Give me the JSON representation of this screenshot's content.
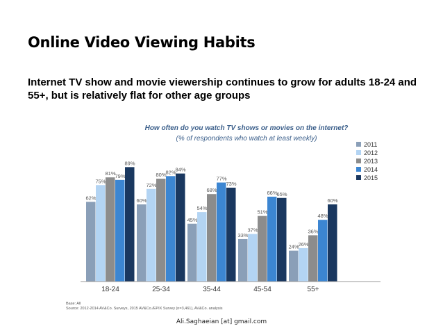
{
  "slide": {
    "title": "Online Video Viewing Habits",
    "subtitle": "Internet TV show and movie viewership continues to grow for adults 18-24 and 55+, but is relatively flat for other age groups",
    "footer": "Ali.Saghaeian [at] gmail.com"
  },
  "chart_data": {
    "type": "bar",
    "title": "How often do you watch TV shows or movies on the internet?",
    "subtitle": "(% of respondents who watch at least weekly)",
    "categories": [
      "18-24",
      "25-34",
      "35-44",
      "45-54",
      "55+"
    ],
    "series": [
      {
        "name": "2011",
        "color": "#8a9fb8",
        "values": [
          62,
          60,
          45,
          33,
          24
        ]
      },
      {
        "name": "2012",
        "color": "#b3d4f3",
        "values": [
          75,
          72,
          54,
          37,
          26
        ]
      },
      {
        "name": "2013",
        "color": "#8c8c8c",
        "values": [
          81,
          80,
          68,
          51,
          36
        ]
      },
      {
        "name": "2014",
        "color": "#3c86d2",
        "values": [
          79,
          82,
          77,
          66,
          48
        ]
      },
      {
        "name": "2015",
        "color": "#1a3860",
        "values": [
          89,
          84,
          73,
          65,
          60
        ]
      }
    ],
    "ylim": [
      0,
      100
    ],
    "grid": false,
    "legend": "right",
    "base_note": "Base: All",
    "source_note": "Source: 2012-2014 AV&Co. Surveys, 2015 AV&Co./EPIX Survey (n=3,461), AV&Co. analysis"
  }
}
